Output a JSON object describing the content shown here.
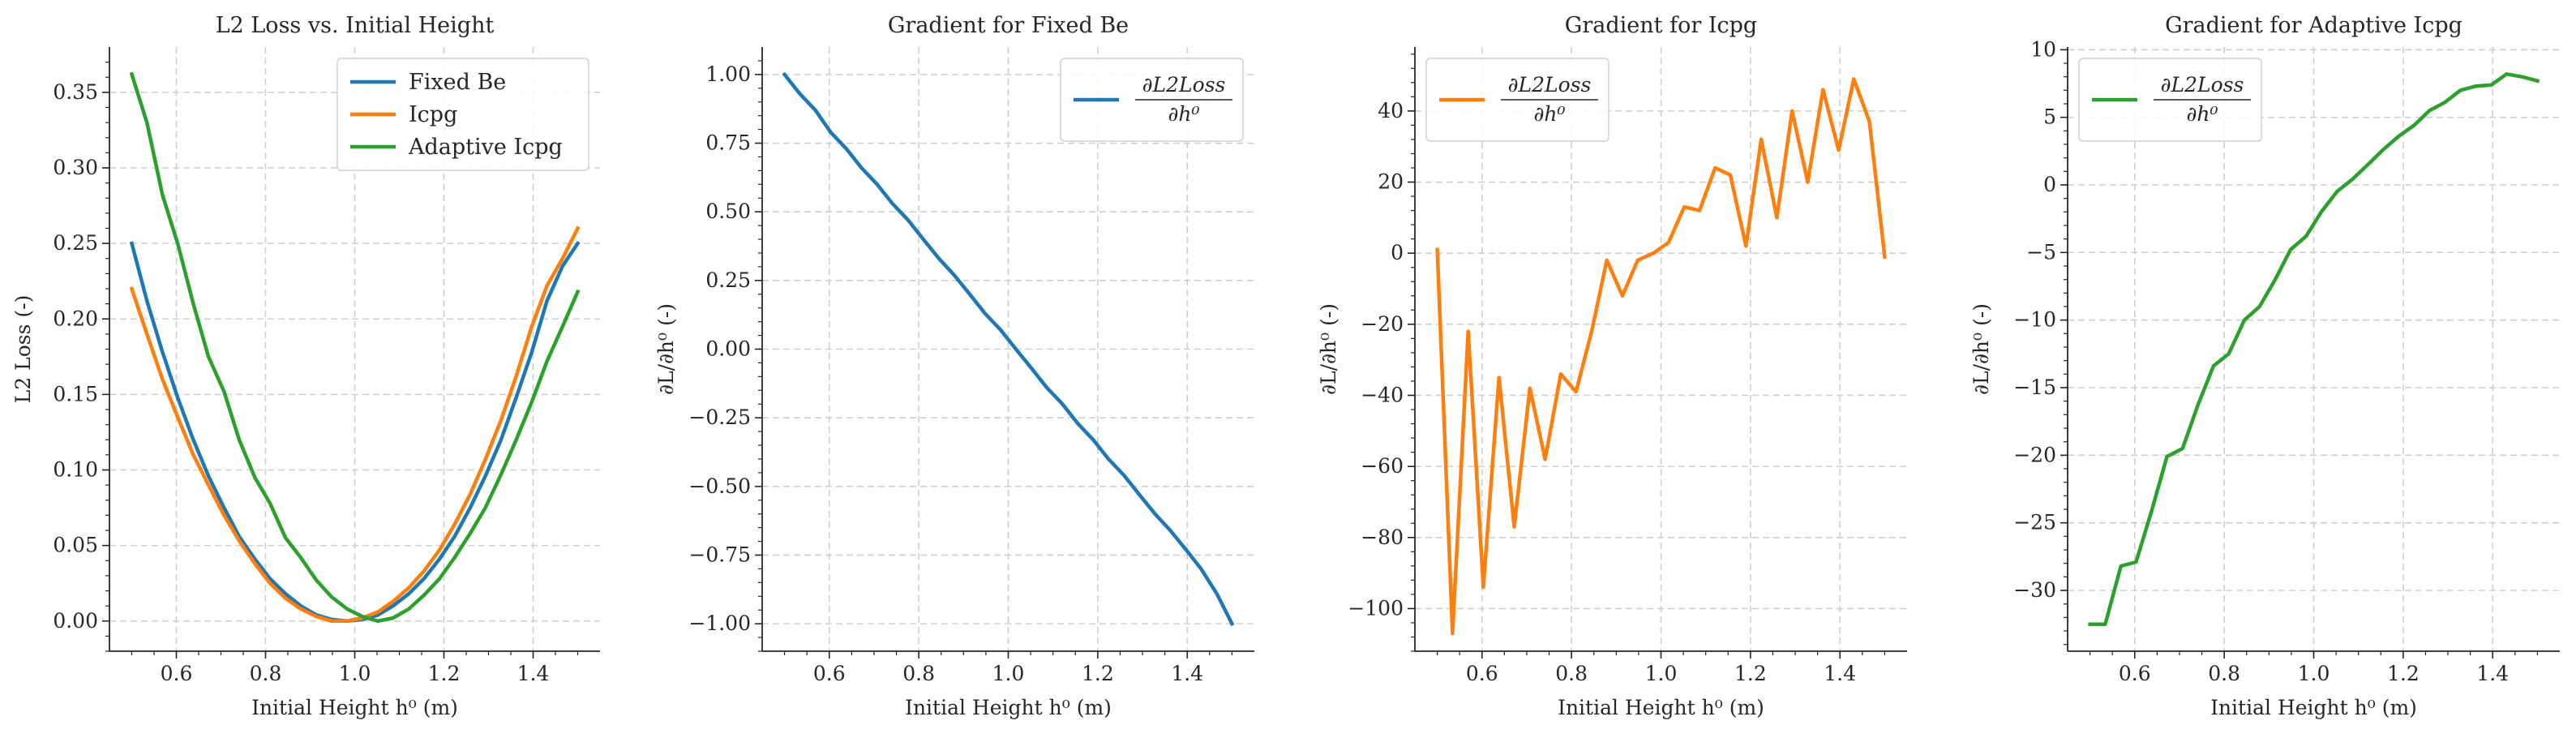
{
  "chart_data": [
    {
      "type": "line",
      "title": "L2 Loss vs. Initial Height",
      "xlabel": "Initial Height h⁰ (m)",
      "ylabel": "L2 Loss (-)",
      "xlim": [
        0.45,
        1.55
      ],
      "ylim": [
        -0.02,
        0.38
      ],
      "xticks": [
        0.6,
        0.8,
        1.0,
        1.2,
        1.4
      ],
      "xtick_labels": [
        "0.6",
        "0.8",
        "1.0",
        "1.2",
        "1.4"
      ],
      "yticks": [
        0.0,
        0.05,
        0.1,
        0.15,
        0.2,
        0.25,
        0.3,
        0.35
      ],
      "ytick_labels": [
        "0.00",
        "0.05",
        "0.10",
        "0.15",
        "0.20",
        "0.25",
        "0.30",
        "0.35"
      ],
      "grid": true,
      "legend": "upper right",
      "x": [
        0.5,
        0.534,
        0.569,
        0.603,
        0.638,
        0.672,
        0.707,
        0.741,
        0.776,
        0.81,
        0.845,
        0.879,
        0.914,
        0.948,
        0.983,
        1.017,
        1.052,
        1.086,
        1.121,
        1.155,
        1.19,
        1.224,
        1.259,
        1.293,
        1.328,
        1.362,
        1.397,
        1.431,
        1.466,
        1.5
      ],
      "series": [
        {
          "name": "Fixed Be",
          "color": "#1f77b4",
          "values": [
            0.25,
            0.212,
            0.178,
            0.148,
            0.12,
            0.096,
            0.075,
            0.056,
            0.041,
            0.028,
            0.018,
            0.01,
            0.004,
            0.001,
            0.0,
            0.001,
            0.004,
            0.01,
            0.018,
            0.028,
            0.041,
            0.056,
            0.075,
            0.096,
            0.12,
            0.148,
            0.178,
            0.212,
            0.235,
            0.25
          ]
        },
        {
          "name": "Icpg",
          "color": "#ff7f0e",
          "values": [
            0.22,
            0.19,
            0.16,
            0.135,
            0.11,
            0.09,
            0.07,
            0.053,
            0.038,
            0.025,
            0.015,
            0.008,
            0.003,
            0.0,
            0.0,
            0.002,
            0.006,
            0.013,
            0.022,
            0.033,
            0.047,
            0.064,
            0.084,
            0.107,
            0.133,
            0.162,
            0.195,
            0.222,
            0.24,
            0.26
          ]
        },
        {
          "name": "Adaptive Icpg",
          "color": "#2ca02c",
          "values": [
            0.362,
            0.33,
            0.282,
            0.25,
            0.21,
            0.175,
            0.152,
            0.12,
            0.095,
            0.078,
            0.055,
            0.042,
            0.027,
            0.016,
            0.008,
            0.003,
            0.0,
            0.002,
            0.008,
            0.017,
            0.028,
            0.042,
            0.058,
            0.075,
            0.097,
            0.12,
            0.145,
            0.172,
            0.195,
            0.218
          ]
        }
      ]
    },
    {
      "type": "line",
      "title": "Gradient for Fixed Be",
      "xlabel": "Initial Height h⁰ (m)",
      "ylabel": "∂L/∂h⁰ (-)",
      "xlim": [
        0.45,
        1.55
      ],
      "ylim": [
        -1.1,
        1.1
      ],
      "xticks": [
        0.6,
        0.8,
        1.0,
        1.2,
        1.4
      ],
      "xtick_labels": [
        "0.6",
        "0.8",
        "1.0",
        "1.2",
        "1.4"
      ],
      "yticks": [
        -1.0,
        -0.75,
        -0.5,
        -0.25,
        0.0,
        0.25,
        0.5,
        0.75,
        1.0
      ],
      "ytick_labels": [
        "−1.00",
        "−0.75",
        "−0.50",
        "−0.25",
        "0.00",
        "0.25",
        "0.50",
        "0.75",
        "1.00"
      ],
      "grid": true,
      "legend": "upper right",
      "x": [
        0.5,
        0.534,
        0.569,
        0.603,
        0.638,
        0.672,
        0.707,
        0.741,
        0.776,
        0.81,
        0.845,
        0.879,
        0.914,
        0.948,
        0.983,
        1.017,
        1.052,
        1.086,
        1.121,
        1.155,
        1.19,
        1.224,
        1.259,
        1.293,
        1.328,
        1.362,
        1.397,
        1.431,
        1.466,
        1.5
      ],
      "series": [
        {
          "name": "∂L2Loss/∂h⁰",
          "color": "#1f77b4",
          "values": [
            1.0,
            0.93,
            0.87,
            0.79,
            0.73,
            0.66,
            0.6,
            0.53,
            0.47,
            0.4,
            0.33,
            0.27,
            0.2,
            0.13,
            0.07,
            0.0,
            -0.07,
            -0.14,
            -0.2,
            -0.27,
            -0.33,
            -0.4,
            -0.46,
            -0.53,
            -0.6,
            -0.66,
            -0.73,
            -0.8,
            -0.89,
            -1.0
          ]
        }
      ]
    },
    {
      "type": "line",
      "title": "Gradient for Icpg",
      "xlabel": "Initial Height h⁰ (m)",
      "ylabel": "∂L/∂h⁰ (-)",
      "xlim": [
        0.45,
        1.55
      ],
      "ylim": [
        -112,
        58
      ],
      "xticks": [
        0.6,
        0.8,
        1.0,
        1.2,
        1.4
      ],
      "xtick_labels": [
        "0.6",
        "0.8",
        "1.0",
        "1.2",
        "1.4"
      ],
      "yticks": [
        -100,
        -80,
        -60,
        -40,
        -20,
        0,
        20,
        40
      ],
      "ytick_labels": [
        "−100",
        "−80",
        "−60",
        "−40",
        "−20",
        "0",
        "20",
        "40"
      ],
      "grid": true,
      "legend": "upper left",
      "x": [
        0.5,
        0.534,
        0.569,
        0.603,
        0.638,
        0.672,
        0.707,
        0.741,
        0.776,
        0.81,
        0.845,
        0.879,
        0.914,
        0.948,
        0.983,
        1.017,
        1.052,
        1.086,
        1.121,
        1.155,
        1.19,
        1.224,
        1.259,
        1.293,
        1.328,
        1.362,
        1.397,
        1.431,
        1.466,
        1.5
      ],
      "series": [
        {
          "name": "∂L2Loss/∂h⁰",
          "color": "#ff7f0e",
          "values": [
            1,
            -107,
            -22,
            -94,
            -35,
            -77,
            -38,
            -58,
            -34,
            -39,
            -22,
            -2,
            -12,
            -2,
            0,
            3,
            13,
            12,
            24,
            22,
            2,
            32,
            10,
            40,
            20,
            46,
            29,
            49,
            37,
            -1
          ]
        }
      ]
    },
    {
      "type": "line",
      "title": "Gradient for Adaptive Icpg",
      "xlabel": "Initial Height h⁰ (m)",
      "ylabel": "∂L/∂h⁰ (-)",
      "xlim": [
        0.45,
        1.55
      ],
      "ylim": [
        -34.5,
        10.2
      ],
      "xticks": [
        0.6,
        0.8,
        1.0,
        1.2,
        1.4
      ],
      "xtick_labels": [
        "0.6",
        "0.8",
        "1.0",
        "1.2",
        "1.4"
      ],
      "yticks": [
        -30,
        -25,
        -20,
        -15,
        -10,
        -5,
        0,
        5,
        10
      ],
      "ytick_labels": [
        "−30",
        "−25",
        "−20",
        "−15",
        "−10",
        "−5",
        "0",
        "5",
        "10"
      ],
      "grid": true,
      "legend": "upper left",
      "x": [
        0.5,
        0.534,
        0.569,
        0.603,
        0.638,
        0.672,
        0.707,
        0.741,
        0.776,
        0.81,
        0.845,
        0.879,
        0.914,
        0.948,
        0.983,
        1.017,
        1.052,
        1.086,
        1.121,
        1.155,
        1.19,
        1.224,
        1.259,
        1.293,
        1.328,
        1.362,
        1.397,
        1.431,
        1.466,
        1.5
      ],
      "series": [
        {
          "name": "∂L2Loss/∂h⁰",
          "color": "#2ca02c",
          "values": [
            -32.5,
            -32.5,
            -28.2,
            -27.9,
            -24.1,
            -20.1,
            -19.5,
            -16.3,
            -13.4,
            -12.5,
            -10,
            -9,
            -7,
            -4.8,
            -3.8,
            -2,
            -0.5,
            0.4,
            1.5,
            2.6,
            3.6,
            4.4,
            5.5,
            6.1,
            7,
            7.3,
            7.4,
            8.2,
            8,
            7.7
          ]
        }
      ]
    }
  ]
}
